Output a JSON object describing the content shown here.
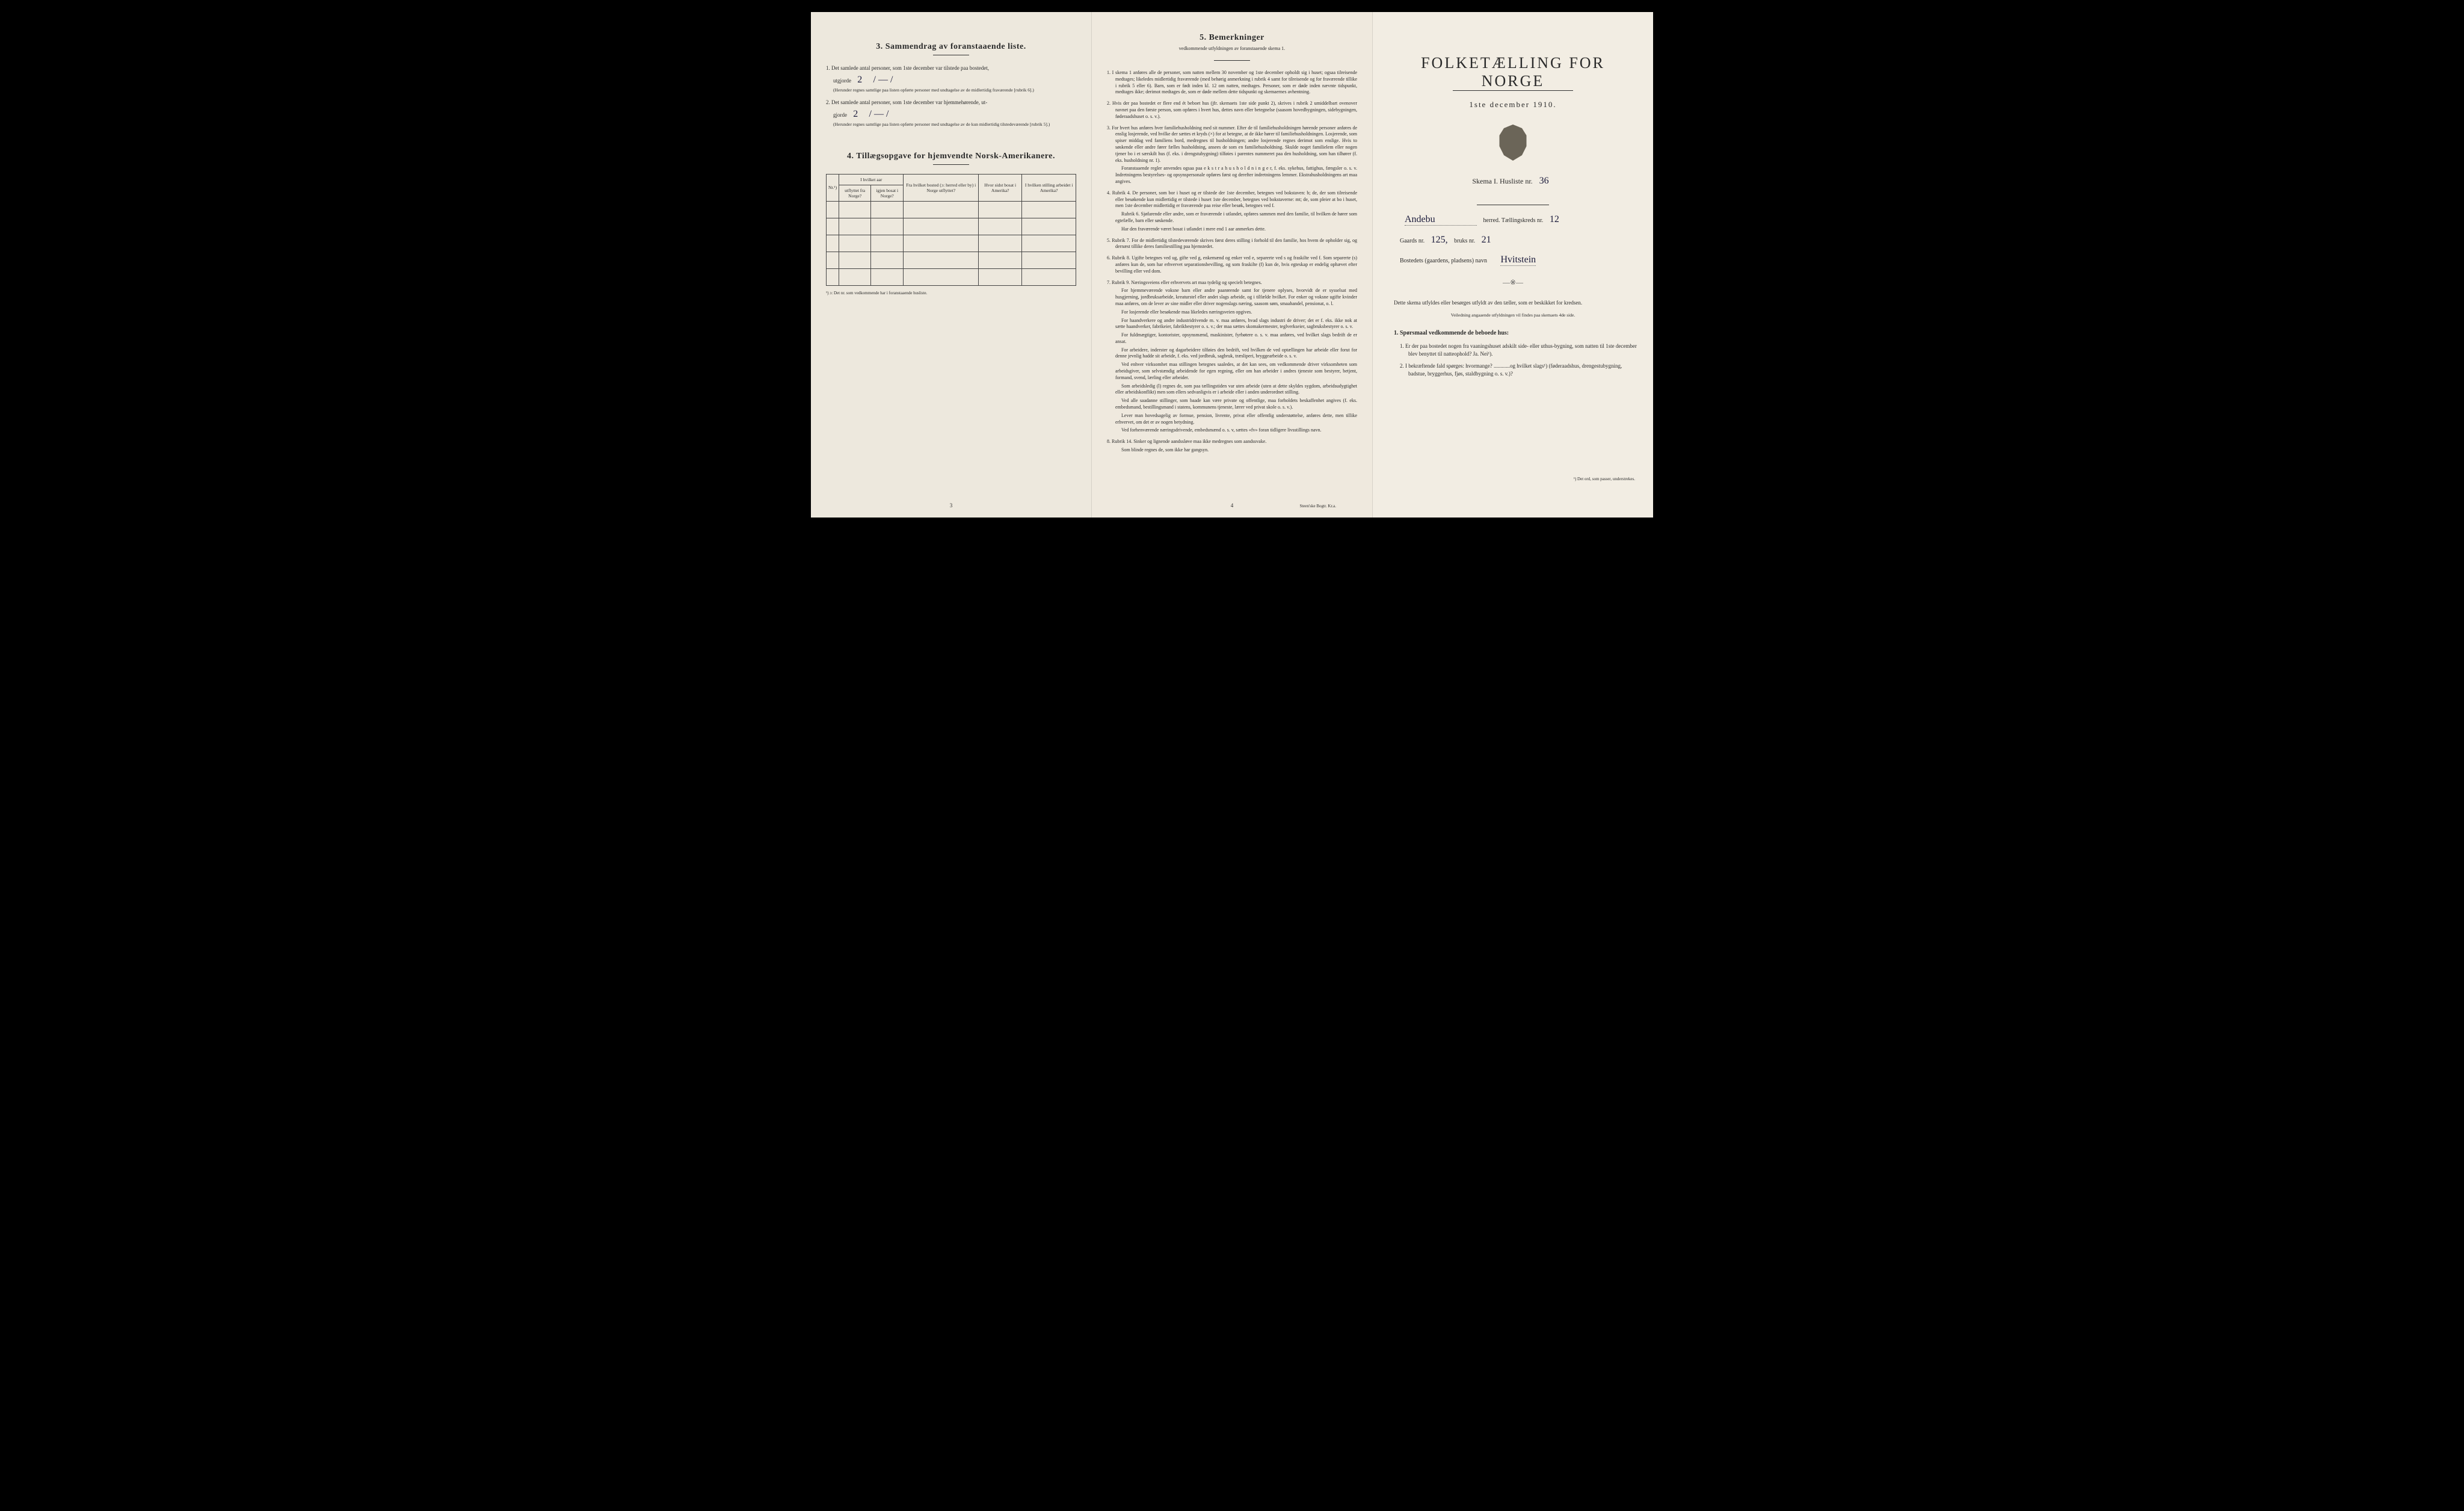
{
  "page3": {
    "section3_title": "3.   Sammendrag av foranstaaende liste.",
    "item1_text": "Det samlede antal personer, som 1ste december var tilstede paa bostedet,",
    "item1_label": "utgjorde",
    "item1_value": "2",
    "item1_dash": "/ — /",
    "item1_note": "(Herunder regnes samtlige paa listen opførte personer med undtagelse av de midlertidig fraværende [rubrik 6].)",
    "item2_text": "Det samlede antal personer, som 1ste december var hjemmehørende, ut-",
    "item2_label": "gjorde",
    "item2_value": "2",
    "item2_dash": "/ — /",
    "item2_note": "(Herunder regnes samtlige paa listen opførte personer med undtagelse av de kun midlertidig tilstedeværende [rubrik 5].)",
    "section4_title": "4.  Tillægsopgave for hjemvendte Norsk-Amerikanere.",
    "table_headers": {
      "col1": "Nr.¹)",
      "col2_top": "I hvilket aar",
      "col2a": "utflyttet fra Norge?",
      "col2b": "igjen bosat i Norge?",
      "col3": "Fra hvilket bosted (ɔ: herred eller by) i Norge utflyttet?",
      "col4": "Hvor sidst bosat i Amerika?",
      "col5": "I hvilken stilling arbeidet i Amerika?"
    },
    "table_footnote": "¹) ɔ: Det nr. som vedkommende har i foranstaaende husliste.",
    "page_num": "3"
  },
  "page4": {
    "section5_title": "5.   Bemerkninger",
    "section5_subtitle": "vedkommende utfyldningen av foranstaaende skema 1.",
    "rules": [
      {
        "n": "1.",
        "text": "I skema 1 anføres alle de personer, som natten mellem 30 november og 1ste december opholdt sig i huset; ogsaa tilreisende medtages; likeledes midlertidig fraværende (med behørig anmerkning i rubrik 4 samt for tilreisende og for fraværende tillike i rubrik 5 eller 6). Barn, som er født inden kl. 12 om natten, medtages. Personer, som er døde inden nævnte tidspunkt, medtages ikke; derimot medtages de, som er døde mellem dette tidspunkt og skemaernes avhentning."
      },
      {
        "n": "2.",
        "text": "Hvis der paa bostedet er flere end ét beboet hus (jfr. skemaets 1ste side punkt 2), skrives i rubrik 2 umiddelbart ovenover navnet paa den første person, som opføres i hvert hus, dettes navn eller betegnelse (saasom hovedbygningen, sidebygningen, føderaadshuset o. s. v.)."
      },
      {
        "n": "3.",
        "text": "For hvert hus anføres hver familiehusholdning med sit nummer. Efter de til familiehusholdningen hørende personer anføres de enslig losjerende, ved hvilke der sættes et kryds (×) for at betegne, at de ikke hører til familiehusholdningen. Losjerende, som spiser middag ved familiens bord, medregnes til husholdningen; andre losjerende regnes derimot som enslige. Hvis to søskende eller andre fører fælles husholdning, ansees de som en familiehusholdning. Skulde noget familielem eller nogen tjener bo i et særskilt hus (f. eks. i drengstubygning) tilføies i parentes nummeret paa den husholdning, som han tilhører (f. eks. husholdning nr. 1).",
        "sub": "Foranstaaende regler anvendes ogsaa paa e k s t r a h u s h o l d n i n g e r, f. eks. sykehus, fattighus, fængsler o. s. v. Indretningens bestyrelses- og opsynspersonale opføres først og derefter indretningens lemmer. Ekstrahusholdningens art maa angives."
      },
      {
        "n": "4.",
        "text": "Rubrik 4. De personer, som bor i huset og er tilstede der 1ste december, betegnes ved bokstaven: b; de, der som tilreisende eller besøkende kun midlertidig er tilstede i huset 1ste december, betegnes ved bokstaverne: mt; de, som pleier at bo i huset, men 1ste december midlertidig er fraværende paa reise eller besøk, betegnes ved f.",
        "sub": "Rubrik 6. Sjøfarende eller andre, som er fraværende i utlandet, opføres sammen med den familie, til hvilken de hører som egtefælle, barn eller søskende.",
        "sub2": "Har den fraværende været bosat i utlandet i mere end 1 aar anmerkes dette."
      },
      {
        "n": "5.",
        "text": "Rubrik 7. For de midlertidig tilstedeværende skrives først deres stilling i forhold til den familie, hos hvem de opholder sig, og dernæst tillike deres familiestilling paa hjemstedet."
      },
      {
        "n": "6.",
        "text": "Rubrik 8. Ugifte betegnes ved ug, gifte ved g, enkemænd og enker ved e, separerte ved s og fraskilte ved f. Som separerte (s) anføres kun de, som har erhvervet separationsbevilling, og som fraskilte (f) kun de, hvis egteskap er endelig ophævet efter bevilling eller ved dom."
      },
      {
        "n": "7.",
        "text": "Rubrik 9. Næringsveiens eller erhvervets art maa tydelig og specielt betegnes.",
        "sub": "For hjemmeværende voksne barn eller andre paarørende samt for tjenere oplyses, hvorvidt de er sysselsat med husgjerning, jordbruksarbeide, kreaturstel eller andet slags arbeide, og i tilfælde hvilket. For enker og voksne ugifte kvinder maa anføres, om de lever av sine midler eller driver nogenslags næring, saasom søm, smaahandel, pensionat, o. l.",
        "sub2": "For losjerende eller besøkende maa likeledes næringsveien opgives.",
        "sub3": "For haandverkere og andre industridrivende m. v. maa anføres, hvad slags industri de driver; det er f. eks. ikke nok at sætte haandverker, fabrikeier, fabrikbestyrer o. s. v.; der maa sættes skomakermester, teglverkseier, sagbruksbestyrer o. s. v.",
        "sub4": "For fuldmægtiger, kontorister, opsynsmænd, maskinister, fyrbøtere o. s. v. maa anføres, ved hvilket slags bedrift de er ansat.",
        "sub5": "For arbeidere, inderster og dagarbeidere tilføies den bedrift, ved hvilken de ved optællingen har arbeide eller forut for denne jevnlig hadde sit arbeide, f. eks. ved jordbruk, sagbruk, træsliperi, bryggearbeide o. s. v.",
        "sub6": "Ved enhver virksomhet maa stillingen betegnes saaledes, at det kan sees, om vedkommende driver virksomheten som arbeidsgiver, som selvstændig arbeidende for egen regning, eller om han arbeider i andres tjeneste som bestyrer, betjent, formand, svend, lærling eller arbeider.",
        "sub7": "Som arbeidsledig (l) regnes de, som paa tællingstiden var uten arbeide (uten at dette skyldes sygdom, arbeidsudygtighet eller arbeidskonflikt) men som ellers sedvanligvis er i arbeide eller i anden underordnet stilling.",
        "sub8": "Ved alle saadanne stillinger, som baade kan være private og offentlige, maa forholdets beskaffenhet angives (f. eks. embedsmand, bestillingsmand i statens, kommunens tjeneste, lærer ved privat skole o. s. v.).",
        "sub9": "Lever man hovedsagelig av formue, pension, livrente, privat eller offentlig understøttelse, anføres dette, men tillike erhvervet, om det er av nogen betydning.",
        "sub10": "Ved forhenværende næringsdrivende, embedsmænd o. s. v, sættes «fv» foran tidligere livsstillings navn."
      },
      {
        "n": "8.",
        "text": "Rubrik 14. Sinker og lignende aandssløve maa ikke medregnes som aandssvake.",
        "sub": "Som blinde regnes de, som ikke har gangsyn."
      }
    ],
    "page_num": "4",
    "publisher": "Steen'ske Bogtr. Kr.a."
  },
  "page1": {
    "main_title": "FOLKETÆLLING FOR NORGE",
    "date": "1ste december 1910.",
    "skema_label": "Skema I.   Husliste nr.",
    "skema_value": "36",
    "herred_value": "Andebu",
    "herred_label": "herred.  Tællingskreds nr.",
    "kreds_value": "12",
    "gaard_label": "Gaards nr.",
    "gaard_value": "125,",
    "bruk_label": "bruks nr.",
    "bruk_value": "21",
    "bosted_label": "Bostedets (gaardens, pladsens) navn",
    "bosted_value": "Hvitstein",
    "instr_text": "Dette skema utfyldes eller besørges utfyldt av den tæller, som er beskikket for kredsen.",
    "instr_note": "Veiledning angaaende utfyldningen vil findes paa skemaets 4de side.",
    "q_header": "1. Spørsmaal vedkommende de beboede hus:",
    "q1": "1.  Er der paa bostedet nogen fra vaaningshuset adskilt side- eller uthus-bygning, som natten til 1ste december blev benyttet til natteophold?  Ja.  Nei¹).",
    "q2": "2.  I bekræftende fald spørges: hvormange? ............og hvilket slags¹) (føderaadshus, drengestubygning, badstue, bryggerhus, fjøs, staldbygning o. s. v.)?",
    "footnote": "¹) Det ord, som passer, understrekes."
  }
}
